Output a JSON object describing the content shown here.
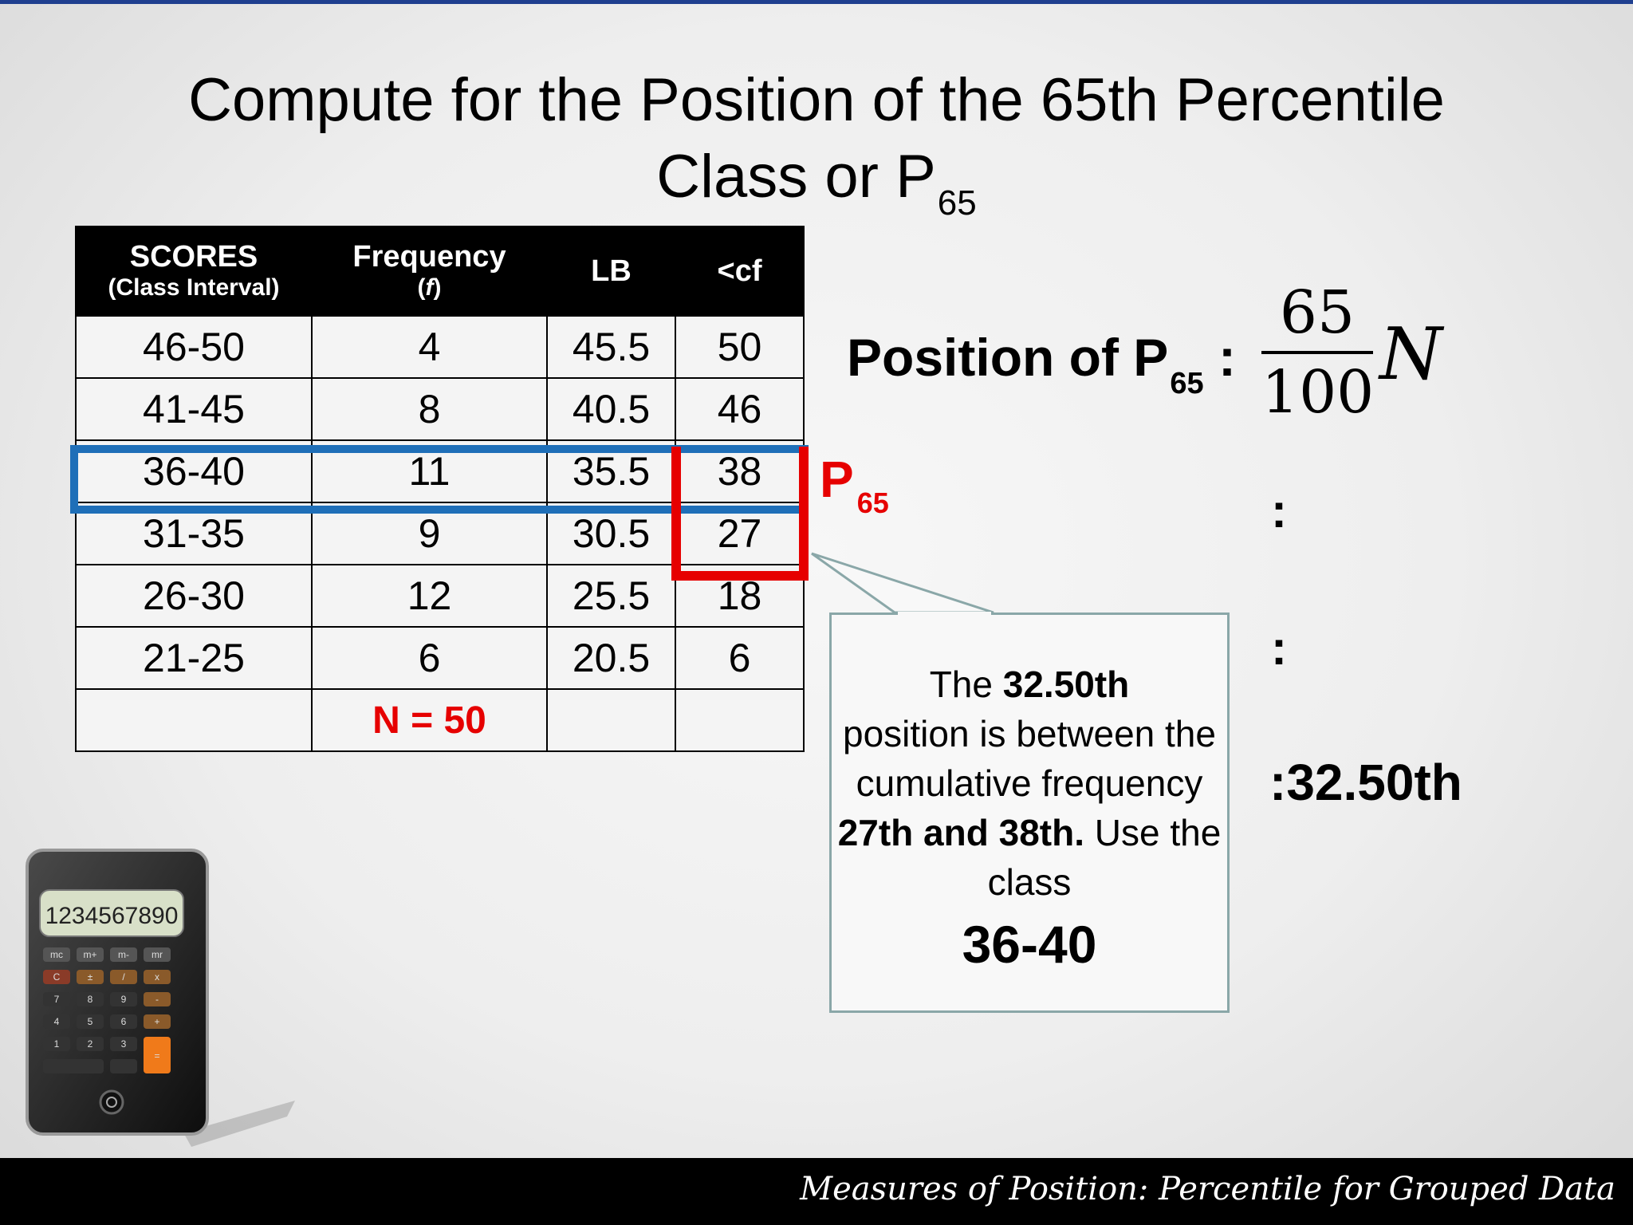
{
  "title": {
    "main": "Compute for the Position of the 65th Percentile",
    "line2": "Class or P",
    "line2_sub": "65"
  },
  "table": {
    "headers": [
      {
        "main": "SCORES",
        "sub": "(Class Interval)"
      },
      {
        "main": "Frequency",
        "sub": "f"
      },
      {
        "main": "LB"
      },
      {
        "main": "<cf"
      }
    ],
    "rows": [
      [
        "46-50",
        "4",
        "45.5",
        "50"
      ],
      [
        "41-45",
        "8",
        "40.5",
        "46"
      ],
      [
        "36-40",
        "11",
        "35.5",
        "38"
      ],
      [
        "31-35",
        "9",
        "30.5",
        "27"
      ],
      [
        "26-30",
        "12",
        "25.5",
        "18"
      ],
      [
        "21-25",
        "6",
        "20.5",
        "6"
      ]
    ],
    "total": "N = 50"
  },
  "marker": {
    "label": "P",
    "sub": "65"
  },
  "formula": {
    "label": "Position of P",
    "label_sub": "65",
    "label_colon": ":",
    "numerator": "65",
    "denominator": "100",
    "variable": "N",
    "step1": ":",
    "step2": ":",
    "result": ":32.50th"
  },
  "callout": {
    "t1": "The ",
    "b1": "32.50th",
    "t2": "position is between the cumulative frequency ",
    "b2": "27th and 38th.",
    "t3": " Use the class",
    "big": "36-40"
  },
  "calculator": {
    "display": "1234567890",
    "keys_row1": [
      "mc",
      "m+",
      "m-",
      "mr"
    ],
    "keys_row2": [
      "C",
      "±",
      "/",
      "x"
    ],
    "keys_row3": [
      "7",
      "8",
      "9",
      "-"
    ],
    "keys_row4": [
      "4",
      "5",
      "6",
      "+"
    ],
    "keys_row5": [
      "1",
      "2",
      "3"
    ],
    "key_equals": "="
  },
  "colors": {
    "accent_blue": "#1f6fb8",
    "accent_red": "#e60000",
    "footer_bg": "#000000"
  },
  "footer": {
    "text": "Measures of Position: Percentile for Grouped Data"
  }
}
